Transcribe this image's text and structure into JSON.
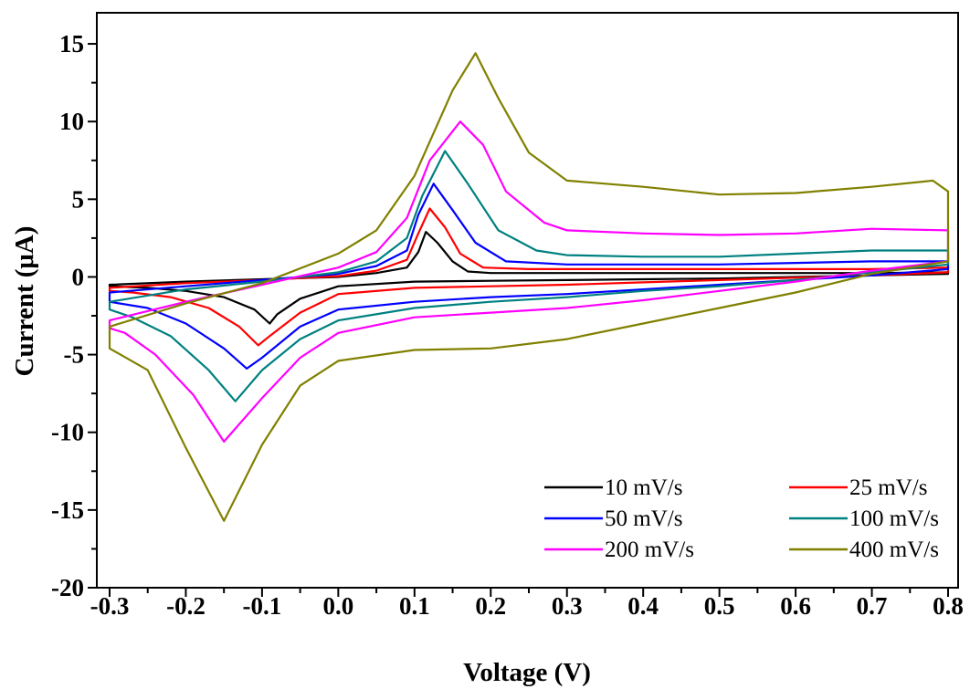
{
  "chart_data": {
    "type": "line",
    "title": "",
    "xlabel": "Voltage (V)",
    "ylabel": "Current (μA)",
    "xlim": [
      -0.3,
      0.8
    ],
    "ylim": [
      -20,
      17
    ],
    "xticks": [
      "-0.3",
      "-0.2",
      "-0.1",
      "0.0",
      "0.1",
      "0.2",
      "0.3",
      "0.4",
      "0.5",
      "0.6",
      "0.7",
      "0.8"
    ],
    "yticks": [
      "15",
      "10",
      "5",
      "0",
      "-5",
      "-10",
      "-15",
      "-20"
    ],
    "grid": false,
    "legend_position": "bottom-right",
    "series": [
      {
        "name": "10 mV/s",
        "color": "#000000",
        "forward": [
          [
            -0.3,
            -0.5
          ],
          [
            -0.2,
            -0.3
          ],
          [
            -0.1,
            -0.15
          ],
          [
            0.0,
            0.0
          ],
          [
            0.05,
            0.25
          ],
          [
            0.09,
            0.6
          ],
          [
            0.105,
            1.6
          ],
          [
            0.115,
            2.9
          ],
          [
            0.13,
            2.2
          ],
          [
            0.15,
            1.0
          ],
          [
            0.17,
            0.35
          ],
          [
            0.2,
            0.25
          ],
          [
            0.3,
            0.25
          ],
          [
            0.4,
            0.25
          ],
          [
            0.5,
            0.25
          ],
          [
            0.6,
            0.25
          ],
          [
            0.7,
            0.25
          ],
          [
            0.8,
            0.3
          ]
        ],
        "reverse": [
          [
            0.8,
            0.2
          ],
          [
            0.7,
            0.1
          ],
          [
            0.6,
            0.0
          ],
          [
            0.5,
            -0.1
          ],
          [
            0.4,
            -0.15
          ],
          [
            0.3,
            -0.2
          ],
          [
            0.2,
            -0.25
          ],
          [
            0.1,
            -0.3
          ],
          [
            0.0,
            -0.6
          ],
          [
            -0.05,
            -1.4
          ],
          [
            -0.08,
            -2.4
          ],
          [
            -0.09,
            -3.0
          ],
          [
            -0.11,
            -2.1
          ],
          [
            -0.15,
            -1.3
          ],
          [
            -0.2,
            -0.9
          ],
          [
            -0.25,
            -0.7
          ],
          [
            -0.3,
            -0.6
          ]
        ]
      },
      {
        "name": "25 mV/s",
        "color": "#ff0000",
        "forward": [
          [
            -0.3,
            -0.7
          ],
          [
            -0.2,
            -0.4
          ],
          [
            -0.1,
            -0.2
          ],
          [
            0.0,
            0.05
          ],
          [
            0.05,
            0.4
          ],
          [
            0.09,
            1.1
          ],
          [
            0.105,
            2.8
          ],
          [
            0.12,
            4.4
          ],
          [
            0.14,
            3.2
          ],
          [
            0.16,
            1.5
          ],
          [
            0.19,
            0.6
          ],
          [
            0.25,
            0.5
          ],
          [
            0.4,
            0.5
          ],
          [
            0.5,
            0.5
          ],
          [
            0.6,
            0.5
          ],
          [
            0.7,
            0.5
          ],
          [
            0.8,
            0.6
          ]
        ],
        "reverse": [
          [
            0.8,
            0.3
          ],
          [
            0.7,
            0.1
          ],
          [
            0.6,
            -0.05
          ],
          [
            0.5,
            -0.2
          ],
          [
            0.4,
            -0.35
          ],
          [
            0.3,
            -0.5
          ],
          [
            0.2,
            -0.6
          ],
          [
            0.1,
            -0.7
          ],
          [
            0.0,
            -1.1
          ],
          [
            -0.05,
            -2.3
          ],
          [
            -0.09,
            -3.8
          ],
          [
            -0.105,
            -4.4
          ],
          [
            -0.13,
            -3.2
          ],
          [
            -0.17,
            -2.0
          ],
          [
            -0.22,
            -1.3
          ],
          [
            -0.27,
            -1.0
          ],
          [
            -0.3,
            -0.9
          ]
        ]
      },
      {
        "name": "50 mV/s",
        "color": "#0000ff",
        "forward": [
          [
            -0.3,
            -1.0
          ],
          [
            -0.2,
            -0.6
          ],
          [
            -0.1,
            -0.2
          ],
          [
            0.0,
            0.2
          ],
          [
            0.05,
            0.7
          ],
          [
            0.09,
            1.7
          ],
          [
            0.105,
            4.0
          ],
          [
            0.125,
            6.0
          ],
          [
            0.15,
            4.3
          ],
          [
            0.18,
            2.2
          ],
          [
            0.22,
            1.0
          ],
          [
            0.3,
            0.8
          ],
          [
            0.4,
            0.8
          ],
          [
            0.5,
            0.8
          ],
          [
            0.6,
            0.9
          ],
          [
            0.7,
            1.0
          ],
          [
            0.8,
            1.0
          ]
        ],
        "reverse": [
          [
            0.8,
            0.5
          ],
          [
            0.7,
            0.1
          ],
          [
            0.6,
            -0.2
          ],
          [
            0.5,
            -0.5
          ],
          [
            0.4,
            -0.8
          ],
          [
            0.3,
            -1.1
          ],
          [
            0.2,
            -1.3
          ],
          [
            0.1,
            -1.6
          ],
          [
            0.0,
            -2.1
          ],
          [
            -0.05,
            -3.2
          ],
          [
            -0.1,
            -5.2
          ],
          [
            -0.12,
            -5.9
          ],
          [
            -0.15,
            -4.6
          ],
          [
            -0.2,
            -3.0
          ],
          [
            -0.25,
            -2.0
          ],
          [
            -0.3,
            -1.6
          ]
        ]
      },
      {
        "name": "100 mV/s",
        "color": "#008080",
        "forward": [
          [
            -0.3,
            -1.6
          ],
          [
            -0.2,
            -0.8
          ],
          [
            -0.1,
            -0.3
          ],
          [
            0.0,
            0.3
          ],
          [
            0.05,
            1.0
          ],
          [
            0.09,
            2.5
          ],
          [
            0.11,
            5.2
          ],
          [
            0.14,
            8.1
          ],
          [
            0.17,
            6.0
          ],
          [
            0.21,
            3.0
          ],
          [
            0.26,
            1.7
          ],
          [
            0.3,
            1.4
          ],
          [
            0.4,
            1.3
          ],
          [
            0.5,
            1.3
          ],
          [
            0.6,
            1.5
          ],
          [
            0.7,
            1.7
          ],
          [
            0.8,
            1.7
          ]
        ],
        "reverse": [
          [
            0.8,
            0.8
          ],
          [
            0.7,
            0.3
          ],
          [
            0.6,
            -0.2
          ],
          [
            0.5,
            -0.6
          ],
          [
            0.4,
            -0.9
          ],
          [
            0.3,
            -1.3
          ],
          [
            0.2,
            -1.6
          ],
          [
            0.1,
            -2.0
          ],
          [
            0.0,
            -2.8
          ],
          [
            -0.05,
            -4.0
          ],
          [
            -0.1,
            -6.0
          ],
          [
            -0.135,
            -8.0
          ],
          [
            -0.17,
            -6.0
          ],
          [
            -0.22,
            -3.8
          ],
          [
            -0.27,
            -2.6
          ],
          [
            -0.3,
            -2.1
          ]
        ]
      },
      {
        "name": "200 mV/s",
        "color": "#ff00ff",
        "forward": [
          [
            -0.3,
            -2.8
          ],
          [
            -0.2,
            -1.6
          ],
          [
            -0.1,
            -0.5
          ],
          [
            0.0,
            0.6
          ],
          [
            0.05,
            1.6
          ],
          [
            0.09,
            3.8
          ],
          [
            0.12,
            7.5
          ],
          [
            0.16,
            10.0
          ],
          [
            0.19,
            8.5
          ],
          [
            0.22,
            5.5
          ],
          [
            0.27,
            3.5
          ],
          [
            0.3,
            3.0
          ],
          [
            0.4,
            2.8
          ],
          [
            0.5,
            2.7
          ],
          [
            0.6,
            2.8
          ],
          [
            0.7,
            3.1
          ],
          [
            0.8,
            3.0
          ]
        ],
        "reverse": [
          [
            0.8,
            1.0
          ],
          [
            0.7,
            0.4
          ],
          [
            0.6,
            -0.3
          ],
          [
            0.5,
            -0.9
          ],
          [
            0.4,
            -1.5
          ],
          [
            0.3,
            -2.0
          ],
          [
            0.2,
            -2.3
          ],
          [
            0.1,
            -2.6
          ],
          [
            0.0,
            -3.6
          ],
          [
            -0.05,
            -5.2
          ],
          [
            -0.1,
            -7.8
          ],
          [
            -0.15,
            -10.6
          ],
          [
            -0.19,
            -7.6
          ],
          [
            -0.24,
            -5.0
          ],
          [
            -0.28,
            -3.6
          ],
          [
            -0.3,
            -3.3
          ]
        ]
      },
      {
        "name": "400 mV/s",
        "color": "#808000",
        "forward": [
          [
            -0.3,
            -3.2
          ],
          [
            -0.2,
            -1.7
          ],
          [
            -0.1,
            -0.4
          ],
          [
            0.0,
            1.5
          ],
          [
            0.05,
            3.0
          ],
          [
            0.1,
            6.5
          ],
          [
            0.15,
            12.0
          ],
          [
            0.18,
            14.4
          ],
          [
            0.21,
            11.5
          ],
          [
            0.25,
            8.0
          ],
          [
            0.3,
            6.2
          ],
          [
            0.4,
            5.8
          ],
          [
            0.5,
            5.3
          ],
          [
            0.6,
            5.4
          ],
          [
            0.7,
            5.8
          ],
          [
            0.78,
            6.2
          ],
          [
            0.8,
            5.5
          ]
        ],
        "reverse": [
          [
            0.8,
            1.0
          ],
          [
            0.7,
            0.2
          ],
          [
            0.6,
            -1.0
          ],
          [
            0.5,
            -2.0
          ],
          [
            0.4,
            -3.0
          ],
          [
            0.3,
            -4.0
          ],
          [
            0.2,
            -4.6
          ],
          [
            0.1,
            -4.7
          ],
          [
            0.0,
            -5.4
          ],
          [
            -0.05,
            -7.0
          ],
          [
            -0.1,
            -10.8
          ],
          [
            -0.15,
            -15.7
          ],
          [
            -0.2,
            -11.0
          ],
          [
            -0.25,
            -6.0
          ],
          [
            -0.3,
            -4.6
          ]
        ]
      }
    ]
  }
}
